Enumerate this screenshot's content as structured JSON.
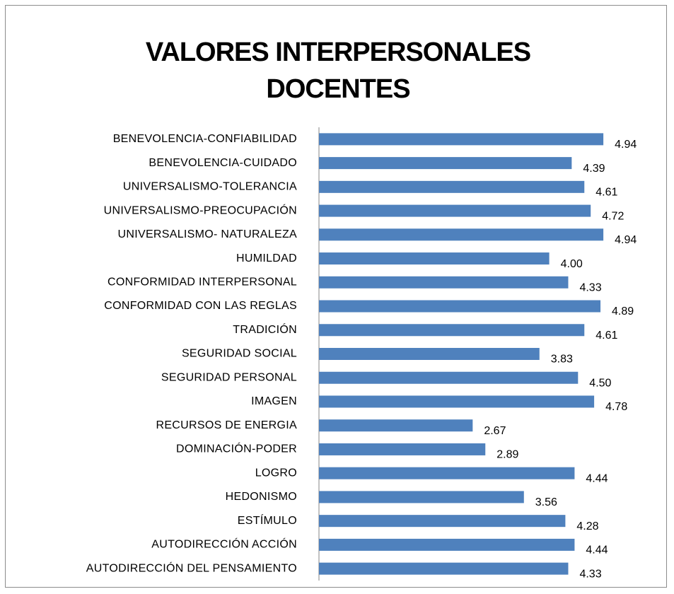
{
  "chart_data": {
    "type": "bar",
    "orientation": "horizontal",
    "title": "VALORES INTERPERSONALES DOCENTES",
    "categories": [
      "BENEVOLENCIA-CONFIABILIDAD",
      "BENEVOLENCIA-CUIDADO",
      "UNIVERSALISMO-TOLERANCIA",
      "UNIVERSALISMO-PREOCUPACIÓN",
      "UNIVERSALISMO- NATURALEZA",
      "HUMILDAD",
      "CONFORMIDAD INTERPERSONAL",
      "CONFORMIDAD CON LAS REGLAS",
      "TRADICIÓN",
      "SEGURIDAD SOCIAL",
      "SEGURIDAD PERSONAL",
      "IMAGEN",
      "RECURSOS DE ENERGIA",
      "DOMINACIÓN-PODER",
      "LOGRO",
      "HEDONISMO",
      "ESTÍMULO",
      "AUTODIRECCIÓN ACCIÓN",
      "AUTODIRECCIÓN DEL PENSAMIENTO"
    ],
    "values": [
      4.94,
      4.39,
      4.61,
      4.72,
      4.94,
      4.0,
      4.33,
      4.89,
      4.61,
      3.83,
      4.5,
      4.78,
      2.67,
      2.89,
      4.44,
      3.56,
      4.28,
      4.44,
      4.33
    ],
    "value_labels": [
      "4.94",
      "4.39",
      "4.61",
      "4.72",
      "4.94",
      "4.00",
      "4.33",
      "4.89",
      "4.61",
      "3.83",
      "4.50",
      "4.78",
      "2.67",
      "2.89",
      "4.44",
      "3.56",
      "4.28",
      "4.44",
      "4.33"
    ],
    "color": "#4f81bd",
    "xlim": [
      0,
      5
    ]
  }
}
